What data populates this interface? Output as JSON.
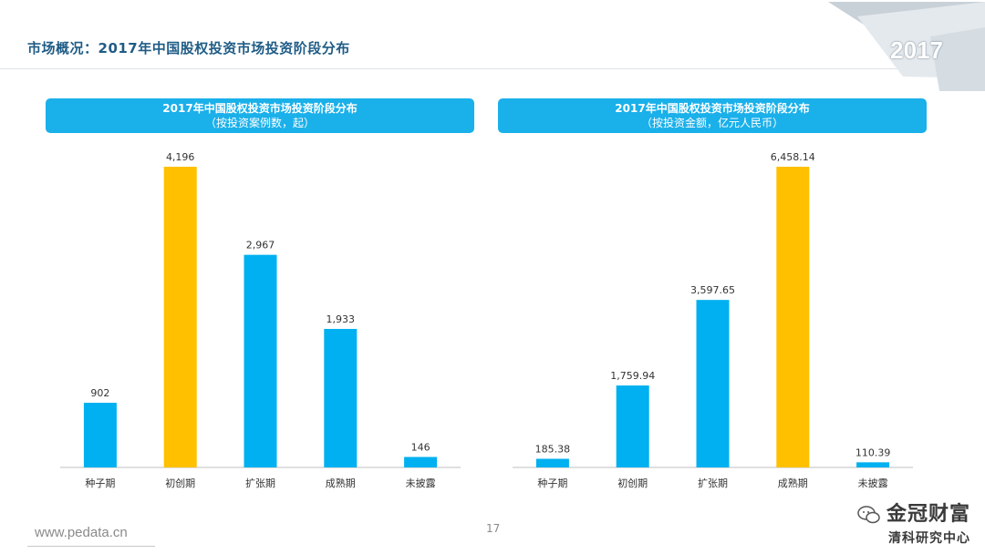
{
  "page": {
    "title": "市场概况：2017年中国股权投资市场投资阶段分布",
    "corner_year": "2017",
    "footer_url": "www.pedata.cn",
    "page_number": "17",
    "watermark_top": "金冠财富",
    "watermark_bottom": "清科研究中心"
  },
  "colors": {
    "bar_default": "#00b0f0",
    "bar_highlight": "#ffc000",
    "header_bg": "#1ab0ea",
    "title": "#1f5c86"
  },
  "chart_data": [
    {
      "type": "bar",
      "title": "2017年中国股权投资市场投资阶段分布",
      "subtitle": "（按投资案例数，起）",
      "categories": [
        "种子期",
        "初创期",
        "扩张期",
        "成熟期",
        "未披露"
      ],
      "values": [
        902,
        4196,
        2967,
        1933,
        146
      ],
      "value_labels": [
        "902",
        "4,196",
        "2,967",
        "1,933",
        "146"
      ],
      "highlight_index": 1,
      "ylim": [
        0,
        4196
      ]
    },
    {
      "type": "bar",
      "title": "2017年中国股权投资市场投资阶段分布",
      "subtitle": "（按投资金额，亿元人民币）",
      "categories": [
        "种子期",
        "初创期",
        "扩张期",
        "成熟期",
        "未披露"
      ],
      "values": [
        185.38,
        1759.94,
        3597.65,
        6458.14,
        110.39
      ],
      "value_labels": [
        "185.38",
        "1,759.94",
        "3,597.65",
        "6,458.14",
        "110.39"
      ],
      "highlight_index": 3,
      "ylim": [
        0,
        6458.14
      ]
    }
  ]
}
